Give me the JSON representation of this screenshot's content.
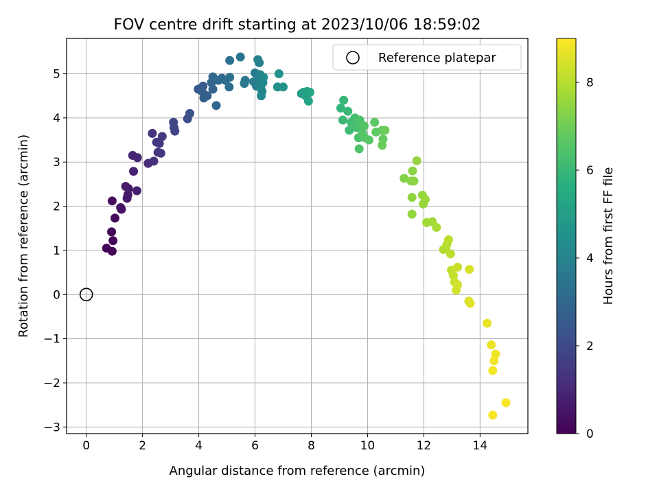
{
  "chart_data": {
    "type": "scatter",
    "title": "FOV centre drift starting at 2023/10/06 18:59:02",
    "xlabel": "Angular distance from reference (arcmin)",
    "ylabel": "Rotation from reference (arcmin)",
    "xlim": [
      -0.7,
      15.7
    ],
    "ylim": [
      -3.15,
      5.8
    ],
    "xticks": [
      0,
      2,
      4,
      6,
      8,
      10,
      12,
      14
    ],
    "yticks": [
      -3,
      -2,
      -1,
      0,
      1,
      2,
      3,
      4,
      5
    ],
    "xtick_labels": [
      "0",
      "2",
      "4",
      "6",
      "8",
      "10",
      "12",
      "14"
    ],
    "ytick_labels": [
      "−3",
      "−2",
      "−1",
      "0",
      "1",
      "2",
      "3",
      "4",
      "5"
    ],
    "grid": true,
    "legend": {
      "placement": "top-right",
      "entries": [
        {
          "label": "Reference platepar",
          "marker": "open-circle"
        }
      ]
    },
    "reference_point": {
      "x": 0,
      "y": 0
    },
    "colorbar": {
      "label": "Hours from first FF file",
      "range": [
        0,
        9
      ],
      "ticks": [
        0,
        2,
        4,
        6,
        8
      ],
      "tick_labels": [
        "0",
        "2",
        "4",
        "6",
        "8"
      ],
      "colormap": "viridis"
    },
    "points": [
      [
        0.72,
        1.05,
        0.05
      ],
      [
        0.92,
        0.98,
        0.1
      ],
      [
        0.95,
        1.22,
        0.15
      ],
      [
        0.9,
        1.42,
        0.2
      ],
      [
        1.02,
        1.73,
        0.25
      ],
      [
        0.92,
        2.12,
        0.3
      ],
      [
        1.25,
        1.93,
        0.4
      ],
      [
        1.22,
        1.97,
        0.45
      ],
      [
        1.45,
        2.18,
        0.55
      ],
      [
        1.48,
        2.26,
        0.6
      ],
      [
        1.4,
        2.45,
        0.65
      ],
      [
        1.5,
        2.4,
        0.7
      ],
      [
        1.8,
        2.35,
        0.8
      ],
      [
        1.68,
        2.79,
        0.85
      ],
      [
        1.65,
        3.15,
        0.95
      ],
      [
        1.82,
        3.1,
        1.0
      ],
      [
        2.2,
        2.97,
        1.1
      ],
      [
        2.4,
        3.02,
        1.2
      ],
      [
        2.35,
        3.65,
        1.3
      ],
      [
        2.55,
        3.22,
        1.35
      ],
      [
        2.65,
        3.2,
        1.4
      ],
      [
        2.5,
        3.45,
        1.45
      ],
      [
        2.6,
        3.42,
        1.5
      ],
      [
        2.7,
        3.58,
        1.55
      ],
      [
        3.15,
        3.7,
        1.8
      ],
      [
        3.12,
        3.78,
        1.85
      ],
      [
        3.1,
        3.9,
        1.9
      ],
      [
        3.6,
        3.98,
        2.1
      ],
      [
        3.68,
        4.1,
        2.2
      ],
      [
        3.98,
        4.65,
        2.5
      ],
      [
        4.15,
        4.72,
        2.6
      ],
      [
        4.12,
        4.6,
        2.65
      ],
      [
        4.3,
        4.5,
        2.7
      ],
      [
        4.18,
        4.45,
        2.75
      ],
      [
        4.5,
        4.65,
        2.85
      ],
      [
        4.45,
        4.8,
        2.9
      ],
      [
        4.5,
        4.93,
        2.95
      ],
      [
        4.62,
        4.28,
        3.0
      ],
      [
        4.7,
        4.85,
        3.05
      ],
      [
        4.82,
        4.9,
        3.1
      ],
      [
        4.95,
        4.85,
        3.15
      ],
      [
        5.08,
        4.7,
        3.2
      ],
      [
        5.1,
        4.92,
        3.3
      ],
      [
        5.1,
        5.3,
        3.35
      ],
      [
        5.48,
        5.38,
        3.5
      ],
      [
        5.65,
        4.85,
        3.55
      ],
      [
        5.62,
        4.78,
        3.6
      ],
      [
        5.95,
        4.82,
        3.7
      ],
      [
        6.0,
        5.02,
        3.75
      ],
      [
        6.05,
        4.72,
        3.8
      ],
      [
        6.1,
        5.32,
        3.85
      ],
      [
        6.15,
        5.25,
        3.9
      ],
      [
        6.12,
        4.9,
        3.95
      ],
      [
        6.18,
        4.98,
        4.0
      ],
      [
        6.2,
        4.68,
        4.05
      ],
      [
        6.25,
        4.6,
        4.1
      ],
      [
        6.22,
        4.5,
        4.15
      ],
      [
        6.28,
        4.8,
        4.2
      ],
      [
        6.3,
        4.92,
        4.25
      ],
      [
        6.8,
        4.7,
        4.5
      ],
      [
        6.85,
        5.0,
        4.55
      ],
      [
        7.0,
        4.7,
        4.6
      ],
      [
        7.65,
        4.55,
        5.0
      ],
      [
        7.72,
        4.58,
        5.05
      ],
      [
        7.8,
        4.5,
        5.1
      ],
      [
        7.85,
        4.6,
        5.15
      ],
      [
        7.9,
        4.38,
        5.2
      ],
      [
        7.95,
        4.58,
        5.25
      ],
      [
        9.05,
        4.22,
        5.9
      ],
      [
        9.15,
        4.4,
        5.95
      ],
      [
        9.12,
        3.95,
        6.0
      ],
      [
        9.3,
        4.15,
        6.05
      ],
      [
        9.35,
        3.72,
        6.1
      ],
      [
        9.42,
        3.9,
        6.15
      ],
      [
        9.5,
        3.82,
        6.2
      ],
      [
        9.55,
        4.0,
        6.25
      ],
      [
        9.62,
        3.78,
        6.3
      ],
      [
        9.68,
        3.55,
        6.35
      ],
      [
        9.72,
        3.95,
        6.4
      ],
      [
        9.7,
        3.3,
        6.45
      ],
      [
        9.82,
        3.65,
        6.5
      ],
      [
        9.88,
        3.82,
        6.55
      ],
      [
        9.9,
        3.55,
        6.6
      ],
      [
        10.05,
        3.5,
        6.65
      ],
      [
        10.25,
        3.9,
        6.7
      ],
      [
        10.3,
        3.68,
        6.75
      ],
      [
        10.52,
        3.72,
        6.8
      ],
      [
        10.55,
        3.52,
        6.85
      ],
      [
        10.52,
        3.38,
        6.9
      ],
      [
        10.62,
        3.72,
        6.95
      ],
      [
        11.3,
        2.63,
        7.3
      ],
      [
        11.55,
        2.57,
        7.35
      ],
      [
        11.6,
        2.8,
        7.4
      ],
      [
        11.65,
        2.57,
        7.42
      ],
      [
        11.58,
        2.2,
        7.45
      ],
      [
        11.75,
        3.03,
        7.5
      ],
      [
        11.58,
        1.82,
        7.52
      ],
      [
        11.95,
        2.25,
        7.55
      ],
      [
        11.98,
        2.05,
        7.58
      ],
      [
        12.05,
        2.15,
        7.6
      ],
      [
        12.1,
        1.63,
        7.7
      ],
      [
        12.3,
        1.65,
        7.75
      ],
      [
        12.45,
        1.52,
        7.8
      ],
      [
        12.7,
        1.02,
        7.9
      ],
      [
        12.78,
        1.05,
        7.95
      ],
      [
        12.82,
        1.13,
        8.0
      ],
      [
        12.88,
        1.24,
        8.05
      ],
      [
        12.95,
        0.92,
        8.1
      ],
      [
        12.98,
        0.55,
        8.15
      ],
      [
        13.05,
        0.43,
        8.2
      ],
      [
        13.1,
        0.28,
        8.25
      ],
      [
        13.2,
        0.62,
        8.3
      ],
      [
        13.15,
        0.1,
        8.35
      ],
      [
        13.2,
        0.22,
        8.4
      ],
      [
        13.62,
        0.57,
        8.45
      ],
      [
        13.6,
        -0.15,
        8.5
      ],
      [
        13.65,
        -0.2,
        8.55
      ],
      [
        14.25,
        -0.65,
        8.7
      ],
      [
        14.4,
        -1.14,
        8.75
      ],
      [
        14.55,
        -1.35,
        8.8
      ],
      [
        14.5,
        -1.5,
        8.82
      ],
      [
        14.45,
        -1.72,
        8.85
      ],
      [
        14.45,
        -2.73,
        8.9
      ],
      [
        14.92,
        -2.45,
        8.95
      ]
    ]
  }
}
